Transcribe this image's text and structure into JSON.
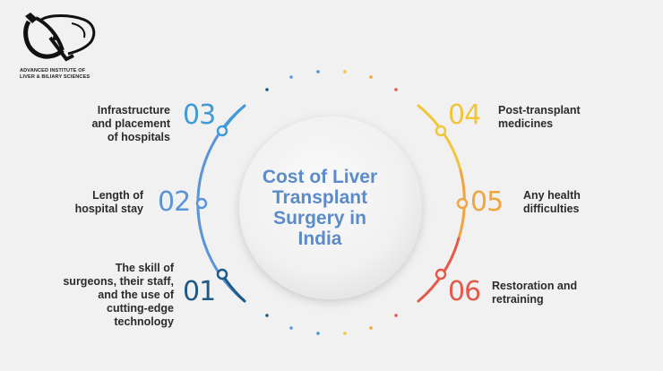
{
  "logo": {
    "line1": "ADVANCED INSTITUTE OF",
    "line2": "LIVER & BILIARY SCIENCES"
  },
  "center": {
    "title": "Cost of Liver\nTransplant\nSurgery in\nIndia"
  },
  "colors": {
    "c01": "#1f5a86",
    "c02": "#5a95d9",
    "c03": "#3f9ad5",
    "c04": "#efc63a",
    "c05": "#f0a540",
    "c06": "#e5584a"
  },
  "factors": [
    {
      "number": "03",
      "label": "Infrastructure\nand placement\nof hospitals"
    },
    {
      "number": "02",
      "label": "Length of\nhospital stay"
    },
    {
      "number": "01",
      "label": "The skill of\nsurgeons, their staff,\nand the use of\ncutting-edge\ntechnology"
    },
    {
      "number": "04",
      "label": "Post-transplant\nmedicines"
    },
    {
      "number": "05",
      "label": "Any health\ndifficulties"
    },
    {
      "number": "06",
      "label": "Restoration and\nretraining"
    }
  ]
}
